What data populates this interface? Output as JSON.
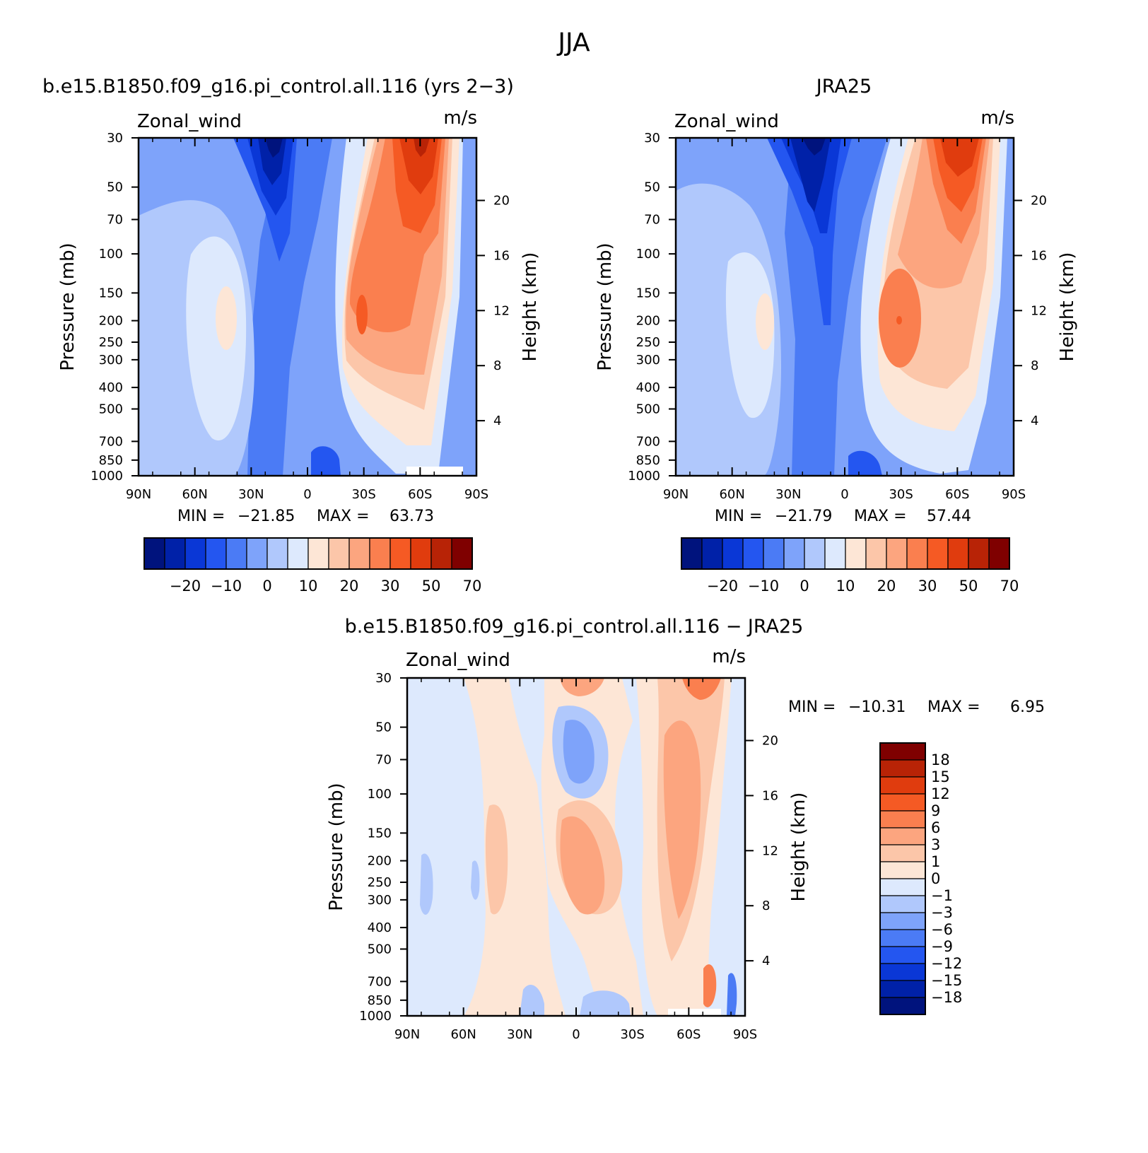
{
  "figure": {
    "title": "JJA"
  },
  "colors": {
    "negative": [
      "#00137d",
      "#0021a8",
      "#0a37d6",
      "#2456f0",
      "#4b7bf5",
      "#7ea3fa",
      "#b0c8fc",
      "#dde9fd"
    ],
    "positive": [
      "#fde6d6",
      "#fcc6a9",
      "#fca57f",
      "#fa7f4f",
      "#f55a24",
      "#e03c0e",
      "#b82306",
      "#7f0000"
    ],
    "diff": [
      "#00137d",
      "#0021a8",
      "#0a37d6",
      "#2456f0",
      "#4b7bf5",
      "#7ea3fa",
      "#b0c8fc",
      "#dde9fd",
      "#fde6d6",
      "#fcc6a9",
      "#fca57f",
      "#fa7f4f",
      "#f55a24",
      "#e03c0e",
      "#b82306",
      "#7f0000"
    ]
  },
  "chart_data": [
    {
      "type": "heatmap",
      "panel_title": "b.e15.B1850.f09_g16.pi_control.all.116 (yrs 2−3)",
      "left_string": "Zonal_wind",
      "right_string": "m/s",
      "ylabel": "Pressure (mb)",
      "y2label": "Height (km)",
      "x_ticks": [
        "90N",
        "60N",
        "30N",
        "0",
        "30S",
        "60S",
        "90S"
      ],
      "y_ticks": [
        "30",
        "50",
        "70",
        "100",
        "150",
        "200",
        "250",
        "300",
        "400",
        "500",
        "700",
        "850",
        "1000"
      ],
      "y2_ticks": [
        "20",
        "16",
        "12",
        "8",
        "4"
      ],
      "min_label": "MIN =",
      "min_value": "−21.85",
      "max_label": "MAX =",
      "max_value": "63.73",
      "colorbar_labels": [
        "−20",
        "−10",
        "0",
        "10",
        "20",
        "30",
        "50",
        "70"
      ],
      "features": [
        {
          "lat": -60,
          "p": 30,
          "value": 63.73
        },
        {
          "lat": -28,
          "p": 200,
          "value": 45
        },
        {
          "lat": 42,
          "p": 200,
          "value": 18
        },
        {
          "lat": 18,
          "p": 30,
          "value": -21.85
        }
      ]
    },
    {
      "type": "heatmap",
      "panel_title": "JRA25",
      "left_string": "Zonal_wind",
      "right_string": "m/s",
      "ylabel": "Pressure (mb)",
      "y2label": "Height (km)",
      "x_ticks": [
        "90N",
        "60N",
        "30N",
        "0",
        "30S",
        "60S",
        "90S"
      ],
      "y_ticks": [
        "30",
        "50",
        "70",
        "100",
        "150",
        "200",
        "250",
        "300",
        "400",
        "500",
        "700",
        "850",
        "1000"
      ],
      "y2_ticks": [
        "20",
        "16",
        "12",
        "8",
        "4"
      ],
      "min_label": "MIN =",
      "min_value": "−21.79",
      "max_label": "MAX =",
      "max_value": "57.44",
      "colorbar_labels": [
        "−20",
        "−10",
        "0",
        "10",
        "20",
        "30",
        "50",
        "70"
      ],
      "features": [
        {
          "lat": -58,
          "p": 30,
          "value": 57.44
        },
        {
          "lat": -30,
          "p": 200,
          "value": 38
        },
        {
          "lat": 42,
          "p": 200,
          "value": 16
        },
        {
          "lat": 16,
          "p": 30,
          "value": -21.79
        }
      ]
    },
    {
      "type": "heatmap",
      "panel_title": "b.e15.B1850.f09_g16.pi_control.all.116 − JRA25",
      "left_string": "Zonal_wind",
      "right_string": "m/s",
      "ylabel": "Pressure (mb)",
      "y2label": "Height (km)",
      "x_ticks": [
        "90N",
        "60N",
        "30N",
        "0",
        "30S",
        "60S",
        "90S"
      ],
      "y_ticks": [
        "30",
        "50",
        "70",
        "100",
        "150",
        "200",
        "250",
        "300",
        "400",
        "500",
        "700",
        "850",
        "1000"
      ],
      "y2_ticks": [
        "20",
        "16",
        "12",
        "8",
        "4"
      ],
      "min_label": "MIN =",
      "min_value": "−10.31",
      "max_label": "MAX =",
      "max_value": "6.95",
      "colorbar_labels": [
        "18",
        "15",
        "12",
        "9",
        "6",
        "3",
        "1",
        "0",
        "−1",
        "−3",
        "−6",
        "−9",
        "−12",
        "−15",
        "−18"
      ],
      "features": [
        {
          "lat": -68,
          "p": 30,
          "value": 6.95
        },
        {
          "lat": 0,
          "p": 70,
          "value": -10.31
        },
        {
          "lat": 5,
          "p": 150,
          "value": 5
        }
      ]
    }
  ]
}
